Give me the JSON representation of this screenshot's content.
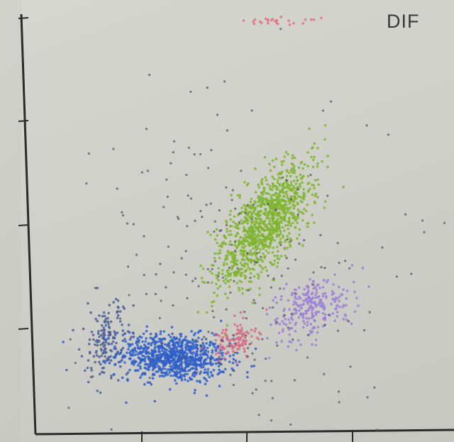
{
  "chart_data": {
    "type": "scatter",
    "title": "DIF",
    "xlabel": "",
    "ylabel": "",
    "xlim": [
      0,
      100
    ],
    "ylim": [
      0,
      100
    ],
    "grid": false,
    "legend": "none",
    "series": [
      {
        "color": "#2f5fc9",
        "center": [
          33,
          18
        ],
        "spread": [
          6.5,
          2.8
        ],
        "rotation": -5,
        "count": 900
      },
      {
        "color": "#7fb52e",
        "center": [
          55,
          50
        ],
        "spread": [
          8.5,
          3.6
        ],
        "rotation": 55,
        "count": 1100
      },
      {
        "color": "#9b7fd6",
        "center": [
          66,
          30
        ],
        "spread": [
          5.5,
          3.2
        ],
        "rotation": 30,
        "count": 260
      },
      {
        "color": "#d86a86",
        "center": [
          48,
          22
        ],
        "spread": [
          2.6,
          2.0
        ],
        "rotation": 20,
        "count": 110
      },
      {
        "color": "#4c5f96",
        "center": [
          17,
          22
        ],
        "spread": [
          2.6,
          5.0
        ],
        "rotation": -10,
        "count": 150
      },
      {
        "color": "#555560",
        "center": [
          48,
          38
        ],
        "spread": [
          20,
          20
        ],
        "rotation": 30,
        "count": 230
      },
      {
        "color": "#e07080",
        "center": [
          58,
          98
        ],
        "spread": [
          5,
          0.4
        ],
        "rotation": 0,
        "count": 25
      }
    ]
  }
}
